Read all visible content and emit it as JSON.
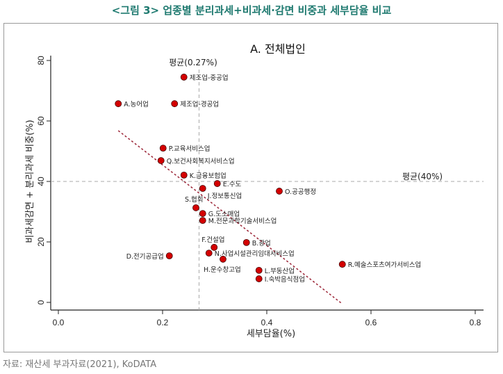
{
  "figure_title": "<그림 3> 업종별 분리과세+비과세·감면 비중과 세부담율 비교",
  "source": "자료: 재산세 부과자료(2021), KoDATA",
  "chart_data": {
    "type": "scatter",
    "title": "A. 전체법인",
    "xlabel": "세부담율(%)",
    "ylabel": "비과세감면 + 분리과세  비중(%)",
    "xlim": [
      0,
      0.8
    ],
    "ylim": [
      0,
      80
    ],
    "xticks": [
      "0.0",
      "0.2",
      "0.4",
      "0.6",
      "0.8"
    ],
    "yticks": [
      "0",
      "20",
      "40",
      "60",
      "80"
    ],
    "grid": false,
    "reference_lines": {
      "x_mean": {
        "value": 0.27,
        "label": "평균(0.27%)"
      },
      "y_mean": {
        "value": 40,
        "label": "평균(40%)"
      }
    },
    "trend_line": {
      "x": [
        0.115,
        0.545
      ],
      "y": [
        56.8,
        -0.5
      ],
      "color": "#9b2335"
    },
    "marker_color": "#d40000",
    "points": [
      {
        "label": "제조업-중공업",
        "x": 0.241,
        "y": 74.5
      },
      {
        "label": "A.농어업",
        "x": 0.115,
        "y": 65.7
      },
      {
        "label": "제조업-경공업",
        "x": 0.223,
        "y": 65.7
      },
      {
        "label": "P.교육서비스업",
        "x": 0.201,
        "y": 51.0
      },
      {
        "label": "Q.보건사회복지서비스업",
        "x": 0.197,
        "y": 46.9
      },
      {
        "label": "K.금융보험업",
        "x": 0.241,
        "y": 42.1
      },
      {
        "label": "E.수도",
        "x": 0.305,
        "y": 39.3
      },
      {
        "label": "J.정보통신업",
        "x": 0.277,
        "y": 37.7
      },
      {
        "label": "O.공공행정",
        "x": 0.424,
        "y": 36.8
      },
      {
        "label": "S.협회",
        "x": 0.264,
        "y": 31.3
      },
      {
        "label": "G.도소매업",
        "x": 0.277,
        "y": 29.4
      },
      {
        "label": "M.전문과학기술서비스업",
        "x": 0.277,
        "y": 27.1
      },
      {
        "label": "F.건설업",
        "x": 0.299,
        "y": 18.2
      },
      {
        "label": "B.광업",
        "x": 0.361,
        "y": 19.8
      },
      {
        "label": "N.사업시설관리임대서비스업",
        "x": 0.289,
        "y": 16.3
      },
      {
        "label": "D.전기공급업",
        "x": 0.213,
        "y": 15.4
      },
      {
        "label": "H.운수창고업",
        "x": 0.316,
        "y": 14.3
      },
      {
        "label": "L.부동산업",
        "x": 0.385,
        "y": 10.6
      },
      {
        "label": "I.숙박음식점업",
        "x": 0.385,
        "y": 7.8
      },
      {
        "label": "R.예술스포츠여가서비스업",
        "x": 0.545,
        "y": 12.6
      }
    ]
  }
}
